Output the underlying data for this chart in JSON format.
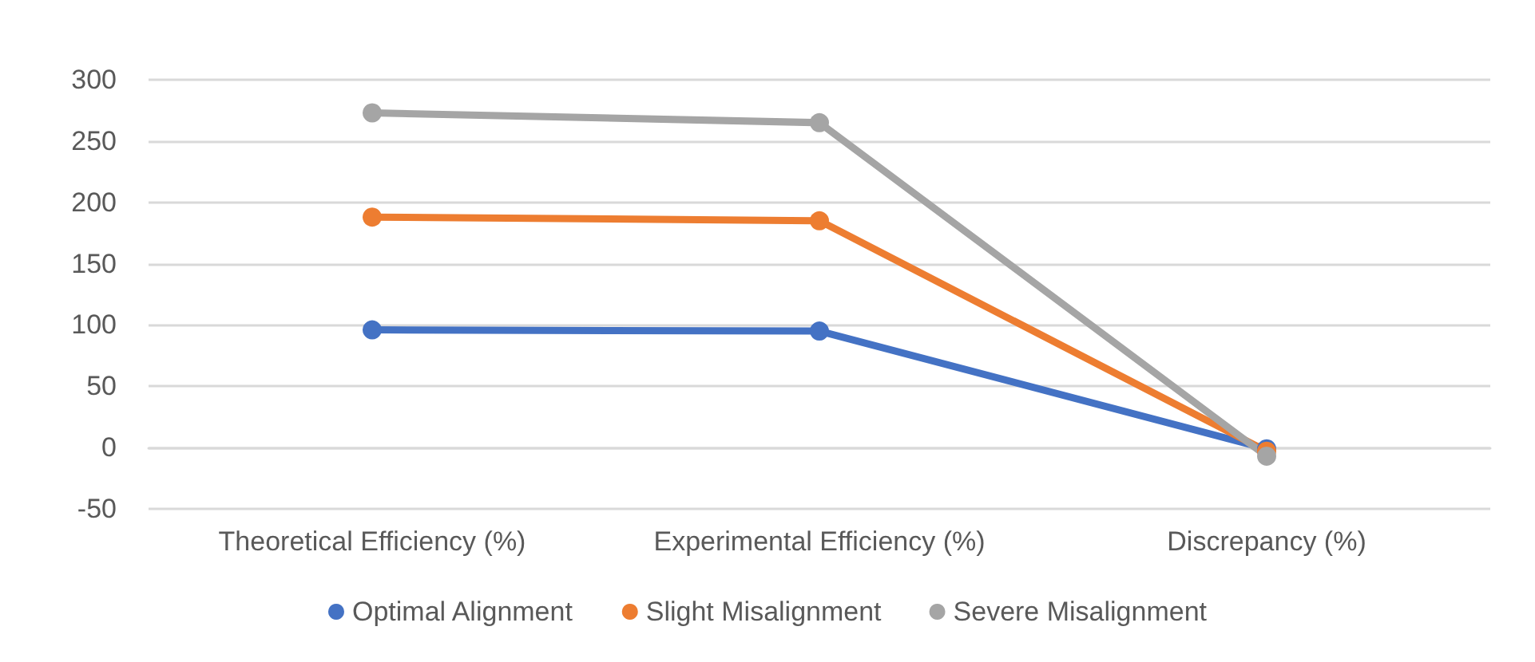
{
  "chart_data": {
    "type": "line",
    "categories": [
      "Theoretical Efficiency (%)",
      "Experimental Efficiency (%)",
      "Discrepancy (%)"
    ],
    "series": [
      {
        "name": "Optimal Alignment",
        "color": "#4472c4",
        "values": [
          96,
          95,
          -1
        ]
      },
      {
        "name": "Slight Misalignment",
        "color": "#ed7d31",
        "values": [
          188,
          185,
          -3
        ]
      },
      {
        "name": "Severe Misalignment",
        "color": "#a5a5a5",
        "values": [
          273,
          265,
          -7
        ]
      }
    ],
    "ylim": [
      -50,
      300
    ],
    "yticks": [
      -50,
      0,
      50,
      100,
      150,
      200,
      250,
      300
    ],
    "grid": "y",
    "legend": "bottom",
    "marker": "circle",
    "line_style": "solid"
  }
}
